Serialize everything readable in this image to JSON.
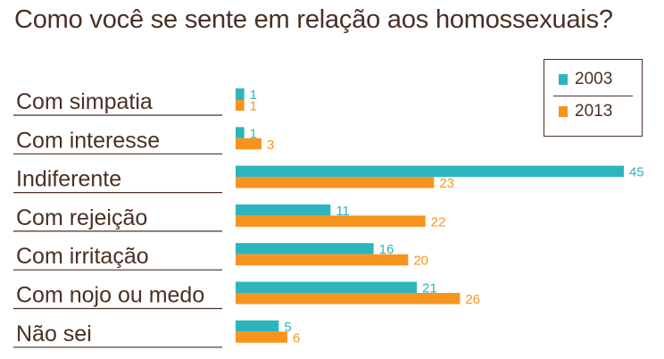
{
  "title": "Como você se sente em relação aos homossexuais?",
  "colors": {
    "text": "#4a3023",
    "teal": "#2cb5bd",
    "orange": "#f7941d"
  },
  "chart_data": {
    "type": "bar",
    "orientation": "horizontal",
    "title": "Como você se sente em relação aos homossexuais?",
    "categories": [
      "Com simpatia",
      "Com interesse",
      "Indiferente",
      "Com rejeição",
      "Com irritação",
      "Com nojo ou medo",
      "Não sei"
    ],
    "series": [
      {
        "name": "2003",
        "color": "#2cb5bd",
        "values": [
          1,
          1,
          45,
          11,
          16,
          21,
          5
        ]
      },
      {
        "name": "2013",
        "color": "#f7941d",
        "values": [
          1,
          3,
          23,
          22,
          20,
          26,
          6
        ]
      }
    ],
    "xlim": [
      0,
      45
    ],
    "legend_position": "top-right",
    "grid": false
  }
}
